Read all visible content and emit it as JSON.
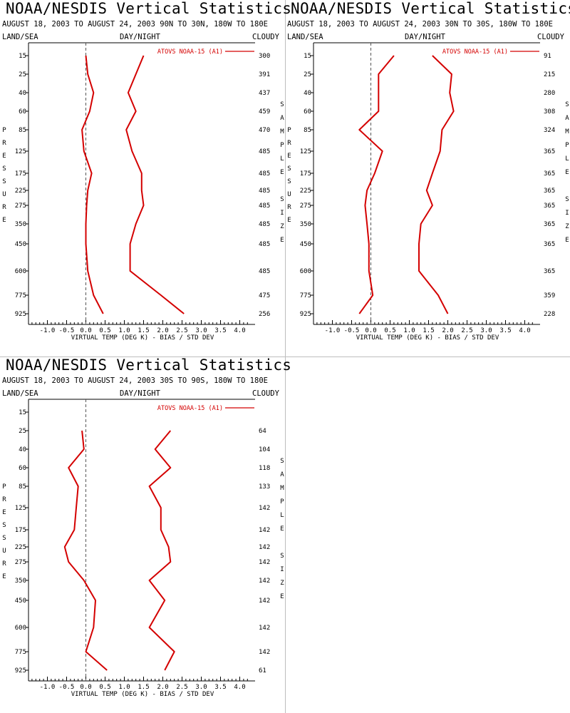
{
  "colors": {
    "series": "#d40000",
    "axes": "#000000",
    "zero_line": "#555555"
  },
  "common": {
    "title": "NOAA/NESDIS Vertical Statistics",
    "land_sea": "LAND/SEA",
    "day_night": "DAY/NIGHT",
    "cloudy": "CLOUDY",
    "ylabel": "PRESSURE",
    "right_label": "SAMPLE SIZE",
    "xlabel": "VIRTUAL TEMP (DEG K) - BIAS / STD DEV",
    "legend": "ATOVS NOAA-15 (A1)"
  },
  "chart_data": [
    {
      "type": "line",
      "subtitle": "AUGUST 18, 2003 TO AUGUST 24, 2003 90N TO 30N, 180W TO 180E",
      "xlim": [
        -1.5,
        4.25
      ],
      "x_ticks": [
        "-1.0",
        "-0.5",
        "0.0",
        "0.5",
        "1.0",
        "1.5",
        "2.0",
        "2.5",
        "3.0",
        "3.5",
        "4.0"
      ],
      "pressure_levels": [
        "15",
        "25",
        "40",
        "60",
        "85",
        "125",
        "175",
        "225",
        "275",
        "350",
        "450",
        "600",
        "775",
        "925"
      ],
      "sample_size": [
        "300",
        "391",
        "437",
        "459",
        "470",
        "485",
        "485",
        "485",
        "485",
        "485",
        "485",
        "485",
        "475",
        "256"
      ],
      "series": [
        {
          "name": "bias",
          "values": [
            0.0,
            0.05,
            0.2,
            0.1,
            -0.1,
            -0.05,
            0.15,
            0.05,
            0.02,
            0.0,
            0.0,
            0.05,
            0.2,
            0.45
          ]
        },
        {
          "name": "std_dev",
          "values": [
            1.5,
            1.3,
            1.1,
            1.3,
            1.05,
            1.2,
            1.45,
            1.45,
            1.5,
            1.3,
            1.15,
            1.15,
            1.95,
            2.55
          ]
        }
      ]
    },
    {
      "type": "line",
      "subtitle": "AUGUST 18, 2003 TO AUGUST 24, 2003 30N TO 30S, 180W TO 180E",
      "xlim": [
        -1.5,
        4.25
      ],
      "x_ticks": [
        "-1.0",
        "-0.5",
        "0.0",
        "0.5",
        "1.0",
        "1.5",
        "2.0",
        "2.5",
        "3.0",
        "3.5",
        "4.0"
      ],
      "pressure_levels": [
        "15",
        "25",
        "40",
        "60",
        "85",
        "125",
        "175",
        "225",
        "275",
        "350",
        "450",
        "600",
        "775",
        "925"
      ],
      "sample_size": [
        "91",
        "215",
        "280",
        "308",
        "324",
        "365",
        "365",
        "365",
        "365",
        "365",
        "365",
        "365",
        "359",
        "228"
      ],
      "series": [
        {
          "name": "bias",
          "values": [
            0.6,
            0.2,
            0.2,
            0.2,
            -0.3,
            0.3,
            0.1,
            -0.1,
            -0.15,
            -0.1,
            -0.05,
            -0.05,
            0.05,
            -0.3
          ]
        },
        {
          "name": "std_dev",
          "values": [
            1.6,
            2.1,
            2.05,
            2.15,
            1.85,
            1.8,
            1.6,
            1.45,
            1.6,
            1.3,
            1.25,
            1.25,
            1.75,
            2.0
          ]
        }
      ]
    },
    {
      "type": "line",
      "subtitle": "AUGUST 18, 2003 TO AUGUST 24, 2003 30S TO 90S, 180W TO 180E",
      "xlim": [
        -1.5,
        4.25
      ],
      "x_ticks": [
        "-1.0",
        "-0.5",
        "0.0",
        "0.5",
        "1.0",
        "1.5",
        "2.0",
        "2.5",
        "3.0",
        "3.5",
        "4.0"
      ],
      "pressure_levels": [
        "15",
        "25",
        "40",
        "60",
        "85",
        "125",
        "175",
        "225",
        "275",
        "350",
        "450",
        "600",
        "775",
        "925"
      ],
      "sample_size": [
        "",
        "64",
        "104",
        "118",
        "133",
        "142",
        "142",
        "142",
        "142",
        "142",
        "142",
        "142",
        "142",
        "61"
      ],
      "series": [
        {
          "name": "bias",
          "values": [
            null,
            -0.1,
            -0.05,
            -0.45,
            -0.2,
            -0.25,
            -0.3,
            -0.55,
            -0.45,
            -0.05,
            0.25,
            0.2,
            0.0,
            0.55
          ]
        },
        {
          "name": "std_dev",
          "values": [
            null,
            2.2,
            1.8,
            2.2,
            1.65,
            1.95,
            1.95,
            2.15,
            2.2,
            1.65,
            2.05,
            1.65,
            2.3,
            2.05
          ]
        }
      ]
    }
  ]
}
